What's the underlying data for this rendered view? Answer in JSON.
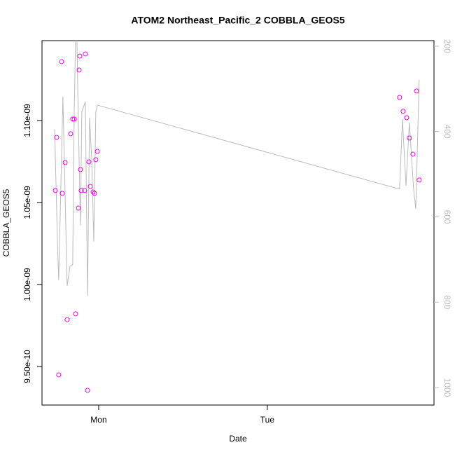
{
  "chart_data": {
    "type": "scatter",
    "title": "ATOM2 Northeast_Pacific_2 COBBLA_GEOS5",
    "x_label": "Date",
    "y_label": "COBBLA_GEOS5",
    "xlim": [
      -0.336,
      1.988
    ],
    "xticks": [
      {
        "value": 0,
        "label": "Mon"
      },
      {
        "value": 1,
        "label": "Tue"
      }
    ],
    "ylim": [
      9.265e-10,
      1.1487e-09
    ],
    "yticks": [
      {
        "value": 9.5e-10,
        "label": "9.50e-10"
      },
      {
        "value": 1e-09,
        "label": "1.00e-09"
      },
      {
        "value": 1.05e-09,
        "label": "1.05e-09"
      },
      {
        "value": 1.1e-09,
        "label": "1.10e-09"
      }
    ],
    "y2lim": [
      1041,
      187
    ],
    "y2ticks": [
      200,
      400,
      600,
      800,
      1000
    ],
    "y2_color": "#bbbbbb",
    "series": [
      {
        "style": "points",
        "color": "#ee00ee",
        "x": [
          -0.257,
          -0.249,
          -0.22,
          -0.216,
          -0.237,
          -0.199,
          -0.187,
          -0.166,
          -0.154,
          -0.145,
          -0.137,
          -0.12,
          -0.116,
          -0.112,
          -0.108,
          -0.104,
          -0.083,
          -0.079,
          -0.066,
          -0.058,
          -0.05,
          -0.033,
          -0.025,
          -0.017,
          -0.008,
          1.784,
          1.805,
          1.826,
          1.842,
          1.863,
          1.884,
          1.9
        ],
        "values": [
          1.0573e-09,
          1.0897e-09,
          1.1359e-09,
          1.0556e-09,
          9.449e-10,
          1.0744e-09,
          9.786e-10,
          1.0919e-09,
          1.1009e-09,
          1.1009e-09,
          9.821e-10,
          1.0466e-09,
          1.1308e-09,
          1.1393e-09,
          1.0701e-09,
          1.0573e-09,
          1.0573e-09,
          1.1406e-09,
          9.355e-10,
          1.0748e-09,
          1.0598e-09,
          1.0564e-09,
          1.0556e-09,
          1.0761e-09,
          1.0812e-09,
          1.1141e-09,
          1.1056e-09,
          1.1017e-09,
          1.0893e-09,
          1.0795e-09,
          1.118e-09,
          1.0637e-09
        ]
      },
      {
        "style": "line",
        "color": "#bbbbbb",
        "axis": "y2",
        "x": [
          -0.261,
          -0.245,
          -0.237,
          -0.212,
          -0.187,
          -0.17,
          -0.154,
          -0.145,
          -0.137,
          -0.129,
          -0.116,
          -0.108,
          -0.1,
          -0.079,
          -0.066,
          -0.054,
          -0.041,
          -0.029,
          -0.017,
          -0.008,
          1.784,
          1.801,
          1.822,
          1.842,
          1.867,
          1.88,
          1.9
        ],
        "values": [
          395,
          650,
          748,
          318,
          762,
          716,
          712,
          354,
          187,
          187,
          469,
          620,
          354,
          330,
          785,
          367,
          469,
          658,
          354,
          338,
          535,
          371,
          527,
          379,
          535,
          581,
          279
        ]
      }
    ]
  }
}
